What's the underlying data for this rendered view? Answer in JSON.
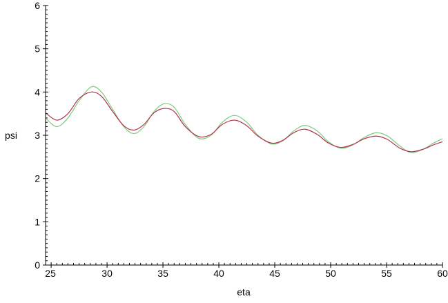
{
  "chart_data": {
    "type": "line",
    "xlabel": "eta",
    "ylabel": "psi",
    "xlim": [
      24.5,
      60
    ],
    "ylim": [
      0,
      6
    ],
    "x_ticks": [
      "25",
      "30",
      "35",
      "40",
      "45",
      "50",
      "55",
      "60"
    ],
    "y_ticks": [
      "0",
      "1",
      "2",
      "3",
      "4",
      "5",
      "6"
    ],
    "grid": false,
    "legend": "none",
    "series": [
      {
        "color": "#7fc97f",
        "points": [
          [
            24.5,
            3.4
          ],
          [
            25.5,
            3.2
          ],
          [
            26.5,
            3.4
          ],
          [
            27.5,
            3.8
          ],
          [
            28.6,
            4.12
          ],
          [
            29.5,
            4.0
          ],
          [
            30.5,
            3.6
          ],
          [
            31.5,
            3.2
          ],
          [
            32.4,
            3.04
          ],
          [
            33.3,
            3.2
          ],
          [
            34.2,
            3.55
          ],
          [
            35.1,
            3.73
          ],
          [
            36.0,
            3.65
          ],
          [
            37.0,
            3.25
          ],
          [
            38.2,
            2.93
          ],
          [
            39.3,
            3.0
          ],
          [
            40.3,
            3.3
          ],
          [
            41.4,
            3.46
          ],
          [
            42.5,
            3.3
          ],
          [
            43.5,
            3.0
          ],
          [
            44.7,
            2.8
          ],
          [
            45.7,
            2.87
          ],
          [
            46.7,
            3.1
          ],
          [
            47.7,
            3.23
          ],
          [
            48.8,
            3.1
          ],
          [
            49.8,
            2.85
          ],
          [
            50.9,
            2.7
          ],
          [
            52.0,
            2.78
          ],
          [
            53.0,
            2.95
          ],
          [
            54.1,
            3.06
          ],
          [
            55.1,
            2.98
          ],
          [
            56.2,
            2.75
          ],
          [
            57.2,
            2.6
          ],
          [
            58.3,
            2.68
          ],
          [
            59.2,
            2.82
          ],
          [
            60.0,
            2.92
          ]
        ]
      },
      {
        "color": "#b03050",
        "points": [
          [
            24.5,
            3.52
          ],
          [
            25.5,
            3.35
          ],
          [
            26.5,
            3.5
          ],
          [
            27.5,
            3.85
          ],
          [
            28.6,
            4.0
          ],
          [
            29.5,
            3.9
          ],
          [
            30.5,
            3.55
          ],
          [
            31.5,
            3.22
          ],
          [
            32.4,
            3.12
          ],
          [
            33.3,
            3.25
          ],
          [
            34.2,
            3.52
          ],
          [
            35.1,
            3.62
          ],
          [
            36.0,
            3.55
          ],
          [
            37.0,
            3.2
          ],
          [
            38.2,
            2.97
          ],
          [
            39.3,
            3.02
          ],
          [
            40.3,
            3.25
          ],
          [
            41.4,
            3.35
          ],
          [
            42.5,
            3.22
          ],
          [
            43.5,
            2.98
          ],
          [
            44.7,
            2.82
          ],
          [
            45.7,
            2.88
          ],
          [
            46.7,
            3.06
          ],
          [
            47.7,
            3.14
          ],
          [
            48.8,
            3.02
          ],
          [
            49.8,
            2.82
          ],
          [
            50.9,
            2.72
          ],
          [
            52.0,
            2.79
          ],
          [
            53.0,
            2.92
          ],
          [
            54.1,
            2.98
          ],
          [
            55.1,
            2.9
          ],
          [
            56.2,
            2.7
          ],
          [
            57.2,
            2.62
          ],
          [
            58.3,
            2.68
          ],
          [
            59.2,
            2.78
          ],
          [
            60.0,
            2.85
          ]
        ]
      }
    ]
  }
}
